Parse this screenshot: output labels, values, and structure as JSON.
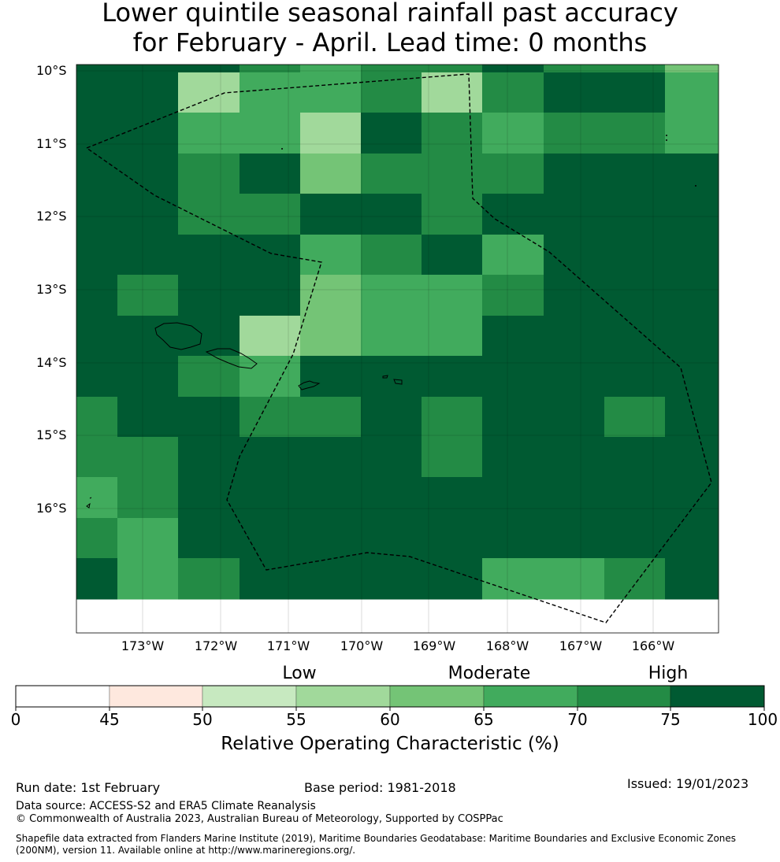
{
  "title": {
    "line1": "Lower quintile seasonal rainfall past accuracy",
    "line2": "for February - April. Lead time: 0 months"
  },
  "map": {
    "lat_labels": [
      "10°S",
      "11°S",
      "12°S",
      "13°S",
      "14°S",
      "15°S",
      "16°S"
    ],
    "lon_labels": [
      "173°W",
      "172°W",
      "171°W",
      "170°W",
      "169°W",
      "168°W",
      "167°W",
      "166°W"
    ],
    "grid_classes": [
      [
        7,
        7,
        7,
        6,
        5,
        6,
        6,
        7,
        6,
        6,
        4
      ],
      [
        7,
        7,
        3,
        5,
        5,
        6,
        3,
        6,
        7,
        7,
        5
      ],
      [
        7,
        7,
        5,
        5,
        3,
        7,
        6,
        5,
        6,
        6,
        5
      ],
      [
        7,
        7,
        6,
        7,
        4,
        6,
        6,
        6,
        7,
        7,
        7
      ],
      [
        7,
        7,
        6,
        6,
        7,
        7,
        6,
        7,
        7,
        7,
        7
      ],
      [
        7,
        7,
        7,
        7,
        5,
        6,
        7,
        5,
        7,
        7,
        7
      ],
      [
        7,
        6,
        7,
        7,
        4,
        5,
        5,
        6,
        7,
        7,
        7
      ],
      [
        7,
        7,
        7,
        3,
        4,
        5,
        5,
        7,
        7,
        7,
        7
      ],
      [
        7,
        7,
        6,
        5,
        7,
        7,
        7,
        7,
        7,
        7,
        7
      ],
      [
        6,
        7,
        7,
        6,
        6,
        7,
        6,
        7,
        7,
        6,
        7
      ],
      [
        6,
        6,
        7,
        7,
        7,
        7,
        6,
        7,
        7,
        7,
        7
      ],
      [
        5,
        6,
        7,
        7,
        7,
        7,
        7,
        7,
        7,
        7,
        7
      ],
      [
        6,
        5,
        7,
        7,
        7,
        7,
        7,
        7,
        7,
        7,
        7
      ],
      [
        7,
        5,
        6,
        7,
        7,
        7,
        7,
        5,
        5,
        6,
        7
      ]
    ]
  },
  "colorbar": {
    "category_labels": [
      "Low",
      "Moderate",
      "High"
    ],
    "ticks": [
      "0",
      "45",
      "50",
      "55",
      "60",
      "65",
      "70",
      "75",
      "100"
    ],
    "colors": [
      "#ffffff",
      "#fee8de",
      "#c7e9c0",
      "#a1d99b",
      "#74c476",
      "#41ab5d",
      "#238b45",
      "#005a32"
    ],
    "title": "Relative Operating Characteristic (%)"
  },
  "footer": {
    "run_date": "Run date: 1st February",
    "base_period": "Base period: 1981-2018",
    "issued": "Issued: 19/01/2023",
    "data_source": "Data source: ACCESS-S2 and ERA5 Climate Reanalysis",
    "copyright": "© Commonwealth of Australia 2023, Australian Bureau of Meteorology, Supported by COSPPac",
    "shapefile": "Shapefile data extracted from Flanders Marine Institute (2019), Maritime Boundaries Geodatabase: Maritime Boundaries and Exclusive Economic Zones (200NM), version 11. Available online at http://www.marineregions.org/."
  }
}
